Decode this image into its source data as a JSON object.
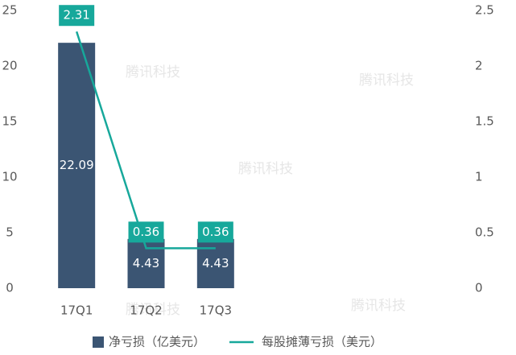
{
  "chart_data": {
    "type": "bar",
    "categories": [
      "17Q1",
      "17Q2",
      "17Q3",
      null,
      null,
      null
    ],
    "series": [
      {
        "name": "净亏损（亿美元）",
        "color": "#3b5573",
        "values": [
          22.09,
          4.43,
          4.43,
          null,
          null,
          null
        ]
      },
      {
        "name": "每股摊薄亏损（美元）",
        "color": "#17a89b",
        "type": "line",
        "axis": "y2",
        "values": [
          2.31,
          0.36,
          0.36,
          null,
          null,
          null
        ]
      }
    ],
    "ylim": [
      0,
      25
    ],
    "yticks": [
      0,
      5,
      10,
      15,
      20,
      25
    ],
    "y2lim": [
      0,
      2.5
    ],
    "y2ticks": [
      0,
      0.5,
      1,
      1.5,
      2,
      2.5
    ],
    "grid": false,
    "legend": "bottom",
    "watermark": "腾讯科技"
  }
}
